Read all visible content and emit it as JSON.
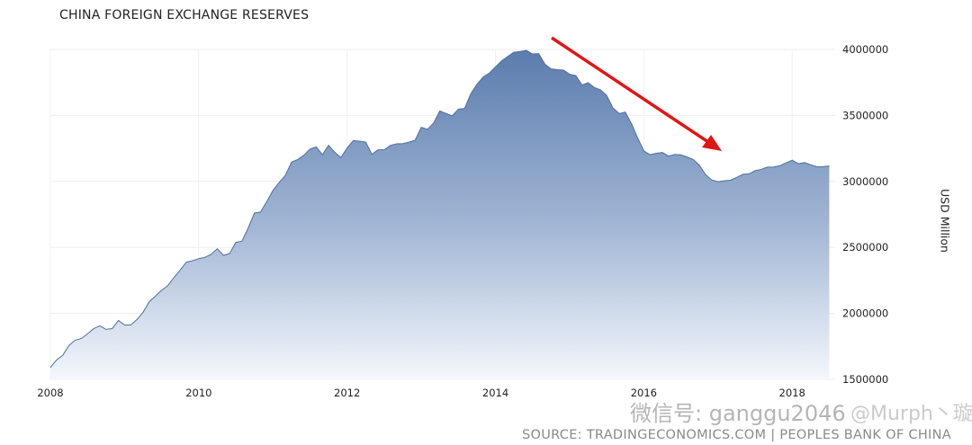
{
  "chart_data": {
    "type": "area",
    "title": "CHINA FOREIGN EXCHANGE RESERVES",
    "xlabel": "",
    "ylabel": "USD Million",
    "source": "SOURCE: TRADINGECONOMICS.COM | PEOPLES BANK OF CHINA",
    "watermarks": [
      "微信号: ganggu2046",
      "@Murph丶璇"
    ],
    "x_start": "2008-01",
    "x_frequency": "monthly",
    "xlim": [
      2008,
      2018.58
    ],
    "ylim": [
      1500000,
      4000000
    ],
    "x_ticks": [
      "2008",
      "2010",
      "2012",
      "2014",
      "2016",
      "2018"
    ],
    "y_ticks": [
      "4000000",
      "3500000",
      "3000000",
      "2500000",
      "2000000",
      "1500000"
    ],
    "grid": true,
    "legend": "none",
    "colors": {
      "area_top": "#5b7cad",
      "area_bottom": "#f4f7fc",
      "line": "#4f6f9f",
      "arrow": "#e01515"
    },
    "annotation": "red arrow pointing down from 2014 peak toward 2017 trough",
    "values": [
      1590000,
      1647000,
      1682000,
      1757000,
      1797000,
      1809000,
      1845000,
      1884000,
      1906000,
      1879000,
      1885000,
      1946000,
      1912000,
      1912000,
      1954000,
      2009000,
      2089000,
      2132000,
      2175000,
      2211000,
      2273000,
      2328000,
      2388000,
      2399000,
      2415000,
      2425000,
      2447000,
      2490000,
      2440000,
      2454000,
      2538000,
      2548000,
      2648000,
      2760000,
      2768000,
      2847000,
      2932000,
      2991000,
      3045000,
      3146000,
      3166000,
      3198000,
      3245000,
      3262000,
      3202000,
      3274000,
      3221000,
      3181000,
      3254000,
      3309000,
      3305000,
      3299000,
      3206000,
      3240000,
      3240000,
      3273000,
      3285000,
      3287000,
      3298000,
      3312000,
      3410000,
      3395000,
      3443000,
      3534000,
      3515000,
      3497000,
      3548000,
      3553000,
      3663000,
      3736000,
      3790000,
      3821000,
      3867000,
      3914000,
      3948000,
      3979000,
      3984000,
      3993000,
      3966000,
      3969000,
      3888000,
      3853000,
      3847000,
      3843000,
      3813000,
      3802000,
      3730000,
      3748000,
      3711000,
      3694000,
      3651000,
      3557000,
      3514000,
      3525000,
      3438000,
      3330000,
      3231000,
      3202000,
      3213000,
      3219000,
      3192000,
      3205000,
      3201000,
      3185000,
      3166000,
      3121000,
      3052000,
      3011000,
      2998000,
      3005000,
      3009000,
      3030000,
      3054000,
      3057000,
      3081000,
      3092000,
      3108000,
      3109000,
      3119000,
      3140000,
      3161000,
      3134000,
      3143000,
      3125000,
      3111000,
      3112000,
      3118000
    ]
  }
}
